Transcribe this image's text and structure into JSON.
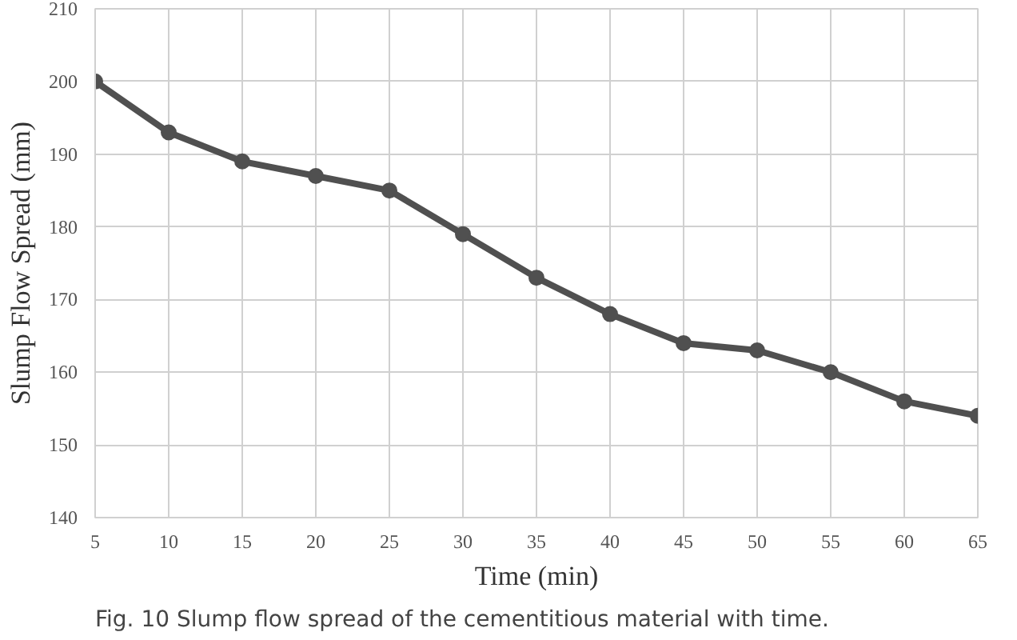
{
  "chart_data": {
    "type": "line",
    "xlabel": "Time (min)",
    "ylabel": "Slump Flow Spread (mm)",
    "annotations": [
      "Fig. 10 Slump flow spread of the cementitious material with time."
    ],
    "x": [
      5,
      10,
      15,
      20,
      25,
      30,
      35,
      40,
      45,
      50,
      55,
      60,
      65
    ],
    "series": [
      {
        "color": "#505050",
        "values": [
          200,
          193,
          189,
          187,
          185,
          179,
          173,
          168,
          164,
          163,
          160,
          156,
          154
        ]
      }
    ],
    "xlim": [
      5,
      65
    ],
    "xticks": [
      5,
      10,
      15,
      20,
      25,
      30,
      35,
      40,
      45,
      50,
      55,
      60,
      65
    ],
    "ylim": [
      140,
      210
    ],
    "yticks": [
      140,
      150,
      160,
      170,
      180,
      190,
      200,
      210
    ],
    "grid": true,
    "marker": "circle",
    "line_style": "solid"
  }
}
